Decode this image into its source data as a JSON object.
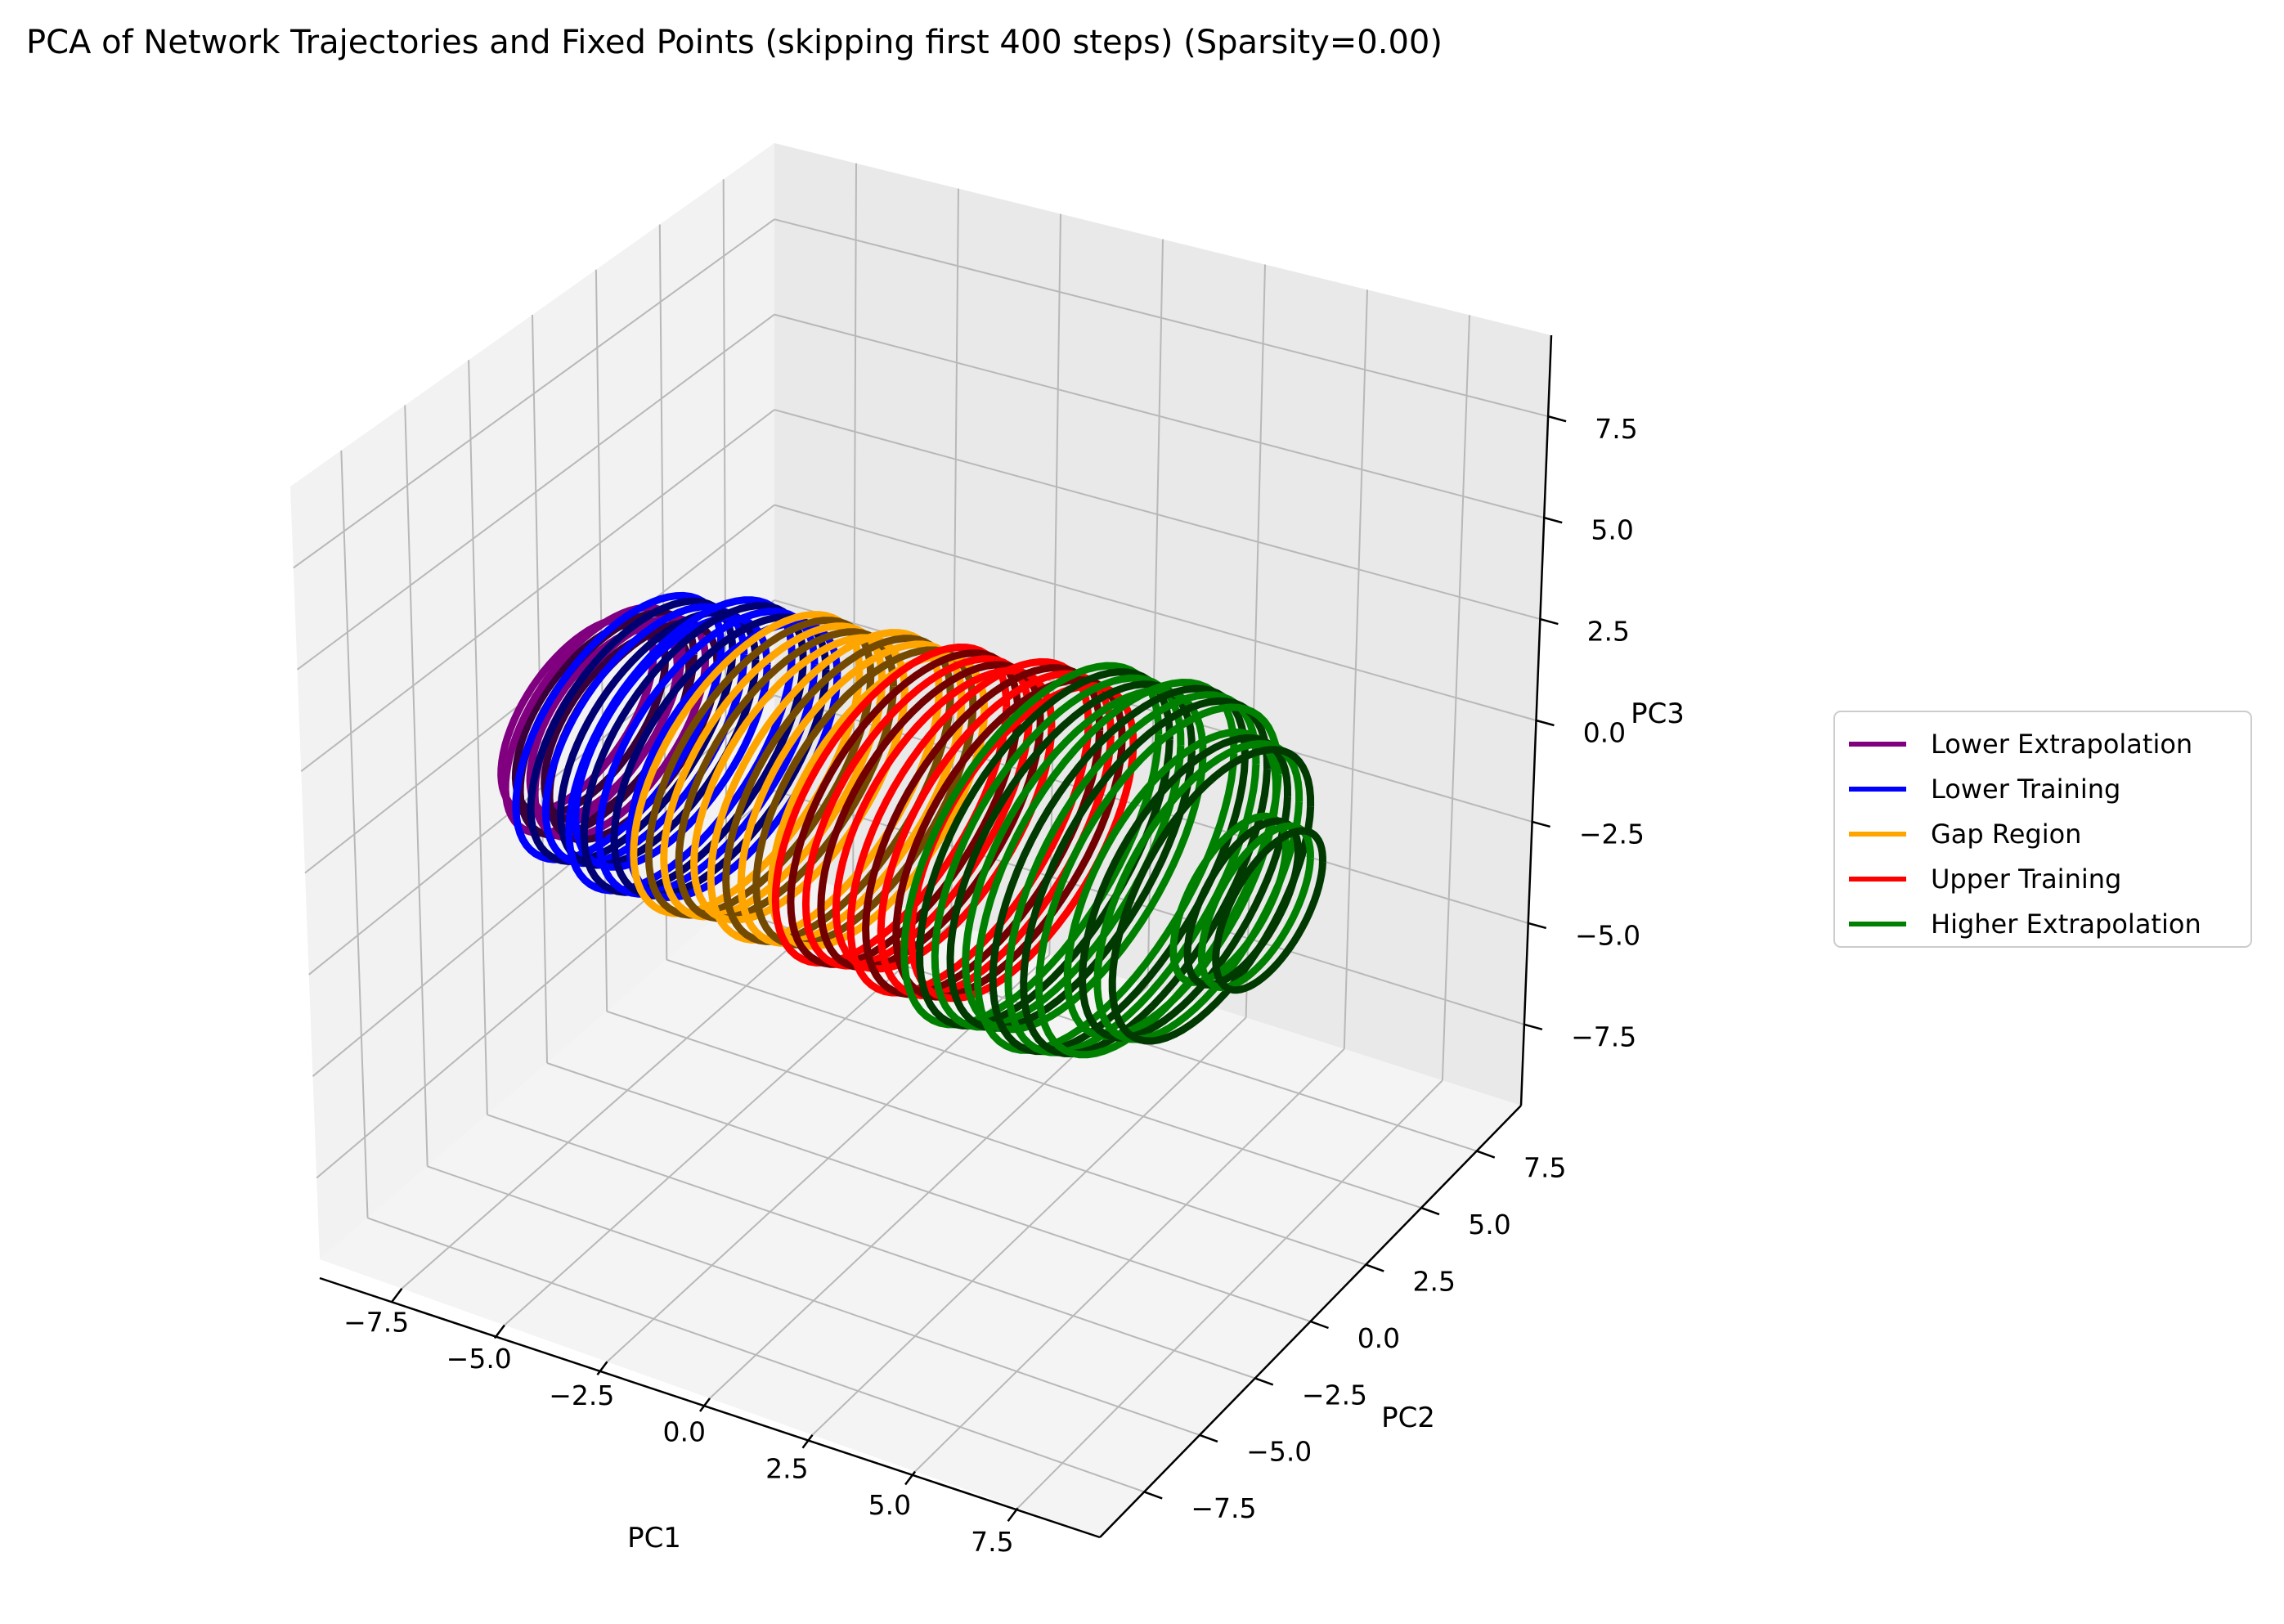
{
  "chart_data": {
    "type": "line",
    "projection": "3d",
    "title": "PCA of Network Trajectories and Fixed Points (skipping first 400 steps) (Sparsity=0.00)",
    "xlabel": "PC1",
    "ylabel": "PC2",
    "zlabel": "PC3",
    "xlim": [
      -9.5,
      9.5
    ],
    "ylim": [
      -9.5,
      9.5
    ],
    "zlim": [
      -9.5,
      9.5
    ],
    "xticks": [
      -7.5,
      -5.0,
      -2.5,
      0.0,
      2.5,
      5.0,
      7.5
    ],
    "yticks": [
      -7.5,
      -5.0,
      -2.5,
      0.0,
      2.5,
      5.0,
      7.5
    ],
    "zticks": [
      -7.5,
      -5.0,
      -2.5,
      0.0,
      2.5,
      5.0,
      7.5
    ],
    "xtick_labels": [
      "−7.5",
      "−5.0",
      "−2.5",
      "0.0",
      "2.5",
      "5.0",
      "7.5"
    ],
    "ytick_labels": [
      "−7.5",
      "−5.0",
      "−2.5",
      "0.0",
      "2.5",
      "5.0",
      "7.5"
    ],
    "ztick_labels": [
      "−7.5",
      "−5.0",
      "−2.5",
      "0.0",
      "2.5",
      "5.0",
      "7.5"
    ],
    "grid": true,
    "legend_position": "right",
    "series": [
      {
        "name": "Lower Extrapolation",
        "color": "#800080",
        "rings": [
          {
            "x": -8.6,
            "y": 0.0,
            "r": 3.1,
            "loops": 4
          },
          {
            "x": -8.2,
            "y": 0.0,
            "r": 3.6,
            "loops": 4
          }
        ]
      },
      {
        "name": "Lower Training",
        "color": "#0000ff",
        "rings": [
          {
            "x": -7.6,
            "y": 0.0,
            "r": 4.2,
            "loops": 5
          },
          {
            "x": -6.1,
            "y": 0.0,
            "r": 4.6,
            "loops": 5
          }
        ]
      },
      {
        "name": "Gap Region",
        "color": "#ffa500",
        "rings": [
          {
            "x": -4.5,
            "y": 0.0,
            "r": 4.7,
            "loops": 5
          },
          {
            "x": -2.6,
            "y": 0.0,
            "r": 4.8,
            "loops": 5
          }
        ]
      },
      {
        "name": "Upper Training",
        "color": "#ff0000",
        "rings": [
          {
            "x": -1.0,
            "y": 0.0,
            "r": 4.9,
            "loops": 5
          },
          {
            "x": 0.9,
            "y": 0.0,
            "r": 5.1,
            "loops": 5
          }
        ]
      },
      {
        "name": "Higher Extrapolation",
        "color": "#008000",
        "rings": [
          {
            "x": 2.4,
            "y": 0.0,
            "r": 5.5,
            "loops": 5
          },
          {
            "x": 4.2,
            "y": 0.0,
            "r": 5.6,
            "loops": 5
          },
          {
            "x": 5.8,
            "y": 0.0,
            "r": 4.6,
            "loops": 4
          },
          {
            "x": 7.2,
            "y": 0.0,
            "r": 2.5,
            "loops": 4
          }
        ]
      }
    ]
  }
}
